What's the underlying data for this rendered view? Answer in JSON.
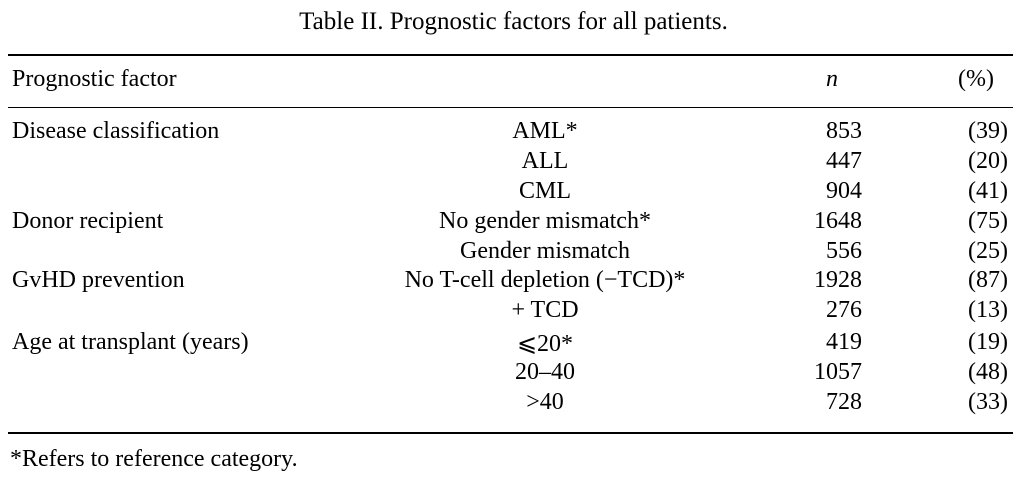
{
  "caption": "Table II. Prognostic factors for all patients.",
  "header": {
    "factor": "Prognostic factor",
    "n": "n",
    "pct": "(%)"
  },
  "rows": [
    {
      "factor": "Disease classification",
      "category": "AML*",
      "n": "853",
      "pct": "(39)"
    },
    {
      "factor": "",
      "category": "ALL",
      "n": "447",
      "pct": "(20)"
    },
    {
      "factor": "",
      "category": "CML",
      "n": "904",
      "pct": "(41)"
    },
    {
      "factor": "Donor recipient",
      "category": "No gender mismatch*",
      "n": "1648",
      "pct": "(75)"
    },
    {
      "factor": "",
      "category": "Gender mismatch",
      "n": "556",
      "pct": "(25)"
    },
    {
      "factor": "GvHD prevention",
      "category": "No T-cell depletion (−TCD)*",
      "n": "1928",
      "pct": "(87)"
    },
    {
      "factor": "",
      "category": "+ TCD",
      "n": "276",
      "pct": "(13)"
    },
    {
      "factor": "Age at transplant (years)",
      "category": "⩽20*",
      "n": "419",
      "pct": "(19)"
    },
    {
      "factor": "",
      "category": "20–40",
      "n": "1057",
      "pct": "(48)"
    },
    {
      "factor": "",
      "category": ">40",
      "n": "728",
      "pct": "(33)"
    }
  ],
  "footnote": "*Refers to reference category."
}
